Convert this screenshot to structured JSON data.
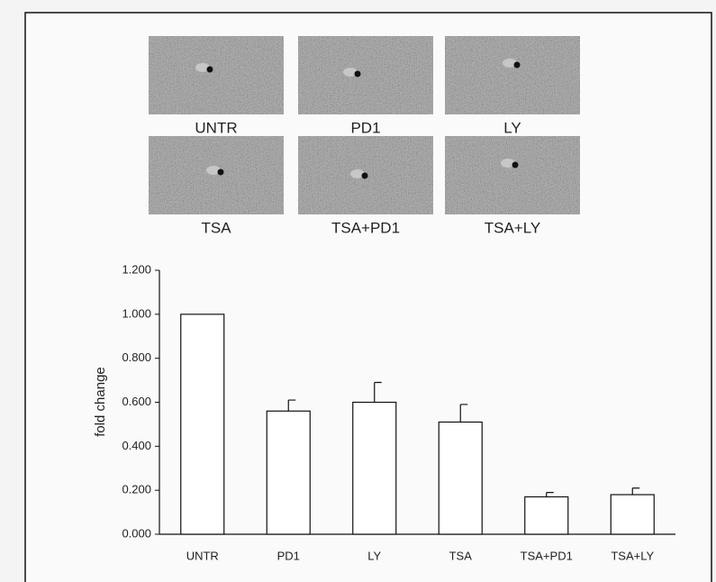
{
  "image_panels": [
    {
      "label": "UNTR"
    },
    {
      "label": "PD1"
    },
    {
      "label": "LY"
    },
    {
      "label": "TSA"
    },
    {
      "label": "TSA+PD1"
    },
    {
      "label": "TSA+LY"
    }
  ],
  "chart_data": {
    "type": "bar",
    "y_label": "fold change",
    "categories": [
      "UNTR",
      "PD1",
      "LY",
      "TSA",
      "TSA+PD1",
      "TSA+LY"
    ],
    "values": [
      1.0,
      0.56,
      0.6,
      0.51,
      0.17,
      0.18
    ],
    "errors": [
      0,
      0.05,
      0.09,
      0.08,
      0.02,
      0.03
    ],
    "color": "#ffffff",
    "ylim": [
      0,
      1.2
    ],
    "yticks": [
      {
        "value": 0,
        "label": "0.000"
      },
      {
        "value": 0.2,
        "label": "0.200"
      },
      {
        "value": 0.4,
        "label": "0.400"
      },
      {
        "value": 0.6,
        "label": "0.600"
      },
      {
        "value": 0.8,
        "label": "0.800"
      },
      {
        "value": 1.0,
        "label": "1.000"
      },
      {
        "value": 1.2,
        "label": "1.200"
      }
    ]
  }
}
